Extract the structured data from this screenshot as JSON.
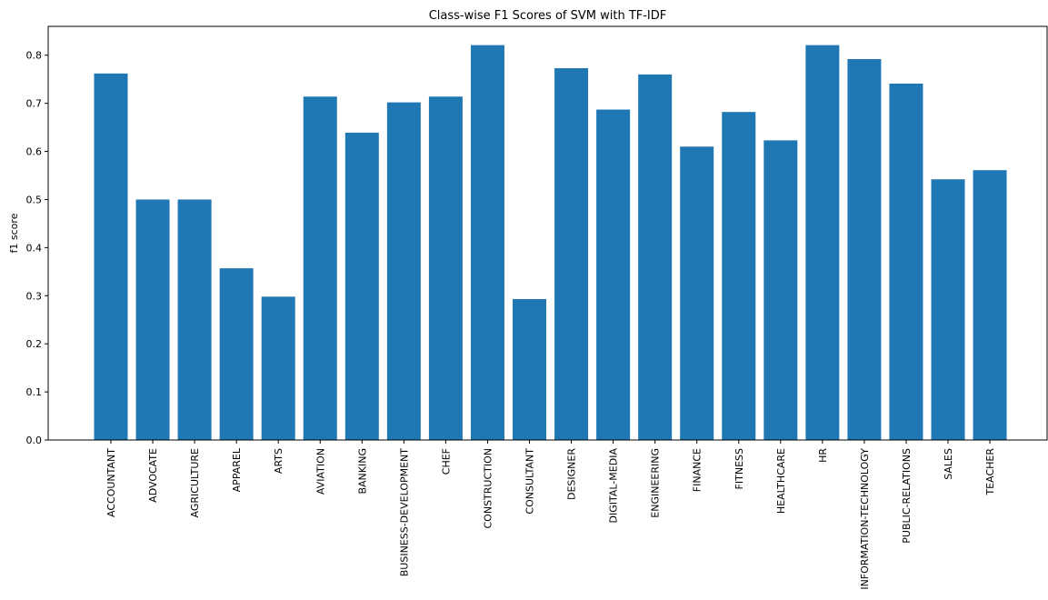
{
  "chart_data": {
    "type": "bar",
    "title": "Class-wise F1 Scores of SVM with TF-IDF",
    "xlabel": "",
    "ylabel": "f1 score",
    "ylim": [
      0,
      0.86
    ],
    "yticks": [
      0.0,
      0.1,
      0.2,
      0.3,
      0.4,
      0.5,
      0.6,
      0.7,
      0.8
    ],
    "ytick_labels": [
      "0.0",
      "0.1",
      "0.2",
      "0.3",
      "0.4",
      "0.5",
      "0.6",
      "0.7",
      "0.8"
    ],
    "grid": false,
    "bar_color": "#1f77b4",
    "categories": [
      "ACCOUNTANT",
      "ADVOCATE",
      "AGRICULTURE",
      "APPAREL",
      "ARTS",
      "AVIATION",
      "BANKING",
      "BUSINESS-DEVELOPMENT",
      "CHEF",
      "CONSTRUCTION",
      "CONSULTANT",
      "DESIGNER",
      "DIGITAL-MEDIA",
      "ENGINEERING",
      "FINANCE",
      "FITNESS",
      "HEALTHCARE",
      "HR",
      "INFORMATION-TECHNOLOGY",
      "PUBLIC-RELATIONS",
      "SALES",
      "TEACHER"
    ],
    "values": [
      0.762,
      0.5,
      0.5,
      0.357,
      0.298,
      0.714,
      0.639,
      0.702,
      0.714,
      0.821,
      0.293,
      0.773,
      0.687,
      0.76,
      0.61,
      0.682,
      0.623,
      0.821,
      0.792,
      0.741,
      0.542,
      0.561
    ]
  }
}
